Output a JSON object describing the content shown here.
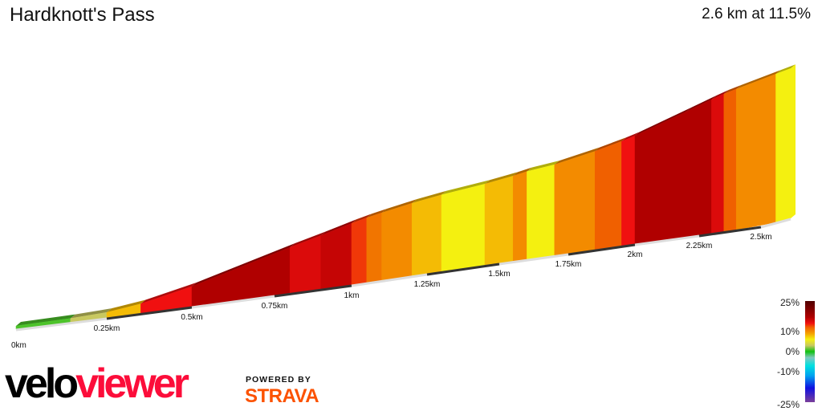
{
  "header": {
    "title": "Hardknott's Pass",
    "summary": "2.6 km at 11.5%"
  },
  "branding": {
    "logo_part1": "velo",
    "logo_part2": "viewer",
    "powered_by": "POWERED BY",
    "strava": "STRAVA"
  },
  "chart_data": {
    "type": "area",
    "title": "Hardknott's Pass",
    "xlabel": "",
    "ylabel": "",
    "x_ticks": [
      "0km",
      "0.25km",
      "0.5km",
      "0.75km",
      "1km",
      "1.25km",
      "1.5km",
      "1.75km",
      "2km",
      "2.25km",
      "2.5km"
    ],
    "segments": [
      {
        "from_km": 0,
        "to_km": 0.15,
        "gradient": 1
      },
      {
        "from_km": 0.15,
        "to_km": 0.25,
        "gradient": 3
      },
      {
        "from_km": 0.25,
        "to_km": 0.35,
        "gradient": 8
      },
      {
        "from_km": 0.35,
        "to_km": 0.5,
        "gradient": 14
      },
      {
        "from_km": 0.5,
        "to_km": 0.8,
        "gradient": 17
      },
      {
        "from_km": 0.8,
        "to_km": 0.9,
        "gradient": 15
      },
      {
        "from_km": 0.9,
        "to_km": 1.0,
        "gradient": 16
      },
      {
        "from_km": 1.0,
        "to_km": 1.05,
        "gradient": 13
      },
      {
        "from_km": 1.05,
        "to_km": 1.1,
        "gradient": 11
      },
      {
        "from_km": 1.1,
        "to_km": 1.2,
        "gradient": 10
      },
      {
        "from_km": 1.2,
        "to_km": 1.3,
        "gradient": 8
      },
      {
        "from_km": 1.3,
        "to_km": 1.45,
        "gradient": 6
      },
      {
        "from_km": 1.45,
        "to_km": 1.55,
        "gradient": 8
      },
      {
        "from_km": 1.55,
        "to_km": 1.6,
        "gradient": 10
      },
      {
        "from_km": 1.6,
        "to_km": 1.7,
        "gradient": 6
      },
      {
        "from_km": 1.7,
        "to_km": 1.85,
        "gradient": 10
      },
      {
        "from_km": 1.85,
        "to_km": 1.95,
        "gradient": 12
      },
      {
        "from_km": 1.95,
        "to_km": 2.0,
        "gradient": 14
      },
      {
        "from_km": 2.0,
        "to_km": 2.2,
        "gradient": 17
      },
      {
        "from_km": 2.2,
        "to_km": 2.3,
        "gradient": 17
      },
      {
        "from_km": 2.3,
        "to_km": 2.35,
        "gradient": 15
      },
      {
        "from_km": 2.35,
        "to_km": 2.4,
        "gradient": 12
      },
      {
        "from_km": 2.4,
        "to_km": 2.55,
        "gradient": 10
      },
      {
        "from_km": 2.55,
        "to_km": 2.6,
        "gradient": 6
      }
    ],
    "legend": {
      "labels": [
        "25%",
        "10%",
        "0%",
        "-10%",
        "-25%"
      ],
      "range": [
        -25,
        25
      ],
      "colors": [
        {
          "v": -25,
          "c": "#7b3f9a"
        },
        {
          "v": -18,
          "c": "#1010e0"
        },
        {
          "v": -12,
          "c": "#00a0f0"
        },
        {
          "v": -7,
          "c": "#00e0e0"
        },
        {
          "v": -3,
          "c": "#80c8c0"
        },
        {
          "v": 0,
          "c": "#10c010"
        },
        {
          "v": 3,
          "c": "#c8c860"
        },
        {
          "v": 6,
          "c": "#f4f010"
        },
        {
          "v": 9,
          "c": "#f4a000"
        },
        {
          "v": 12,
          "c": "#f06000"
        },
        {
          "v": 14,
          "c": "#f01010"
        },
        {
          "v": 17,
          "c": "#b00000"
        },
        {
          "v": 25,
          "c": "#500000"
        }
      ]
    }
  }
}
